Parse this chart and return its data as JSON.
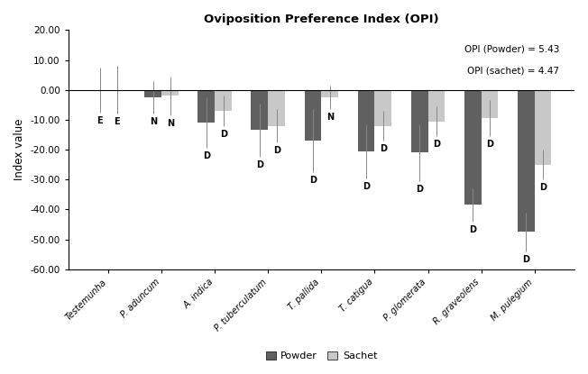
{
  "title": "Oviposition Preference Index (OPI)",
  "ylabel": "Index value",
  "annotation1": "OPI (Powder) = 5.43",
  "annotation2": "OPI (sachet) = 4.47",
  "categories": [
    "Testemunha",
    "P. aduncum",
    "A. indica",
    "P. tuberculatum",
    "T. pallida",
    "T. catigua",
    "P. glomerata",
    "R. graveolens",
    "M. pulegium"
  ],
  "powder_values": [
    0.0,
    -2.5,
    -11.0,
    -13.5,
    -17.0,
    -20.5,
    -21.0,
    -38.5,
    -47.5
  ],
  "sachet_values": [
    0.0,
    -2.0,
    -7.0,
    -12.0,
    -2.5,
    -12.0,
    -10.5,
    -9.5,
    -25.0
  ],
  "powder_errors": [
    7.5,
    5.5,
    8.5,
    9.0,
    10.5,
    9.0,
    9.5,
    5.5,
    6.5
  ],
  "sachet_errors": [
    8.0,
    6.5,
    5.0,
    5.5,
    4.0,
    5.0,
    5.0,
    6.0,
    5.0
  ],
  "powder_labels": [
    "E",
    "N",
    "D",
    "D",
    "D",
    "D",
    "D",
    "D",
    "D"
  ],
  "sachet_labels": [
    "E",
    "N",
    "D",
    "D",
    "N",
    "D",
    "D",
    "D",
    "D"
  ],
  "powder_color": "#606060",
  "sachet_color": "#c8c8c8",
  "bar_width": 0.32,
  "ylim": [
    -60,
    20
  ],
  "yticks": [
    20,
    10,
    0,
    -10,
    -20,
    -30,
    -40,
    -50,
    -60
  ],
  "background_color": "#ffffff",
  "legend_labels": [
    "Powder",
    "Sachet"
  ]
}
